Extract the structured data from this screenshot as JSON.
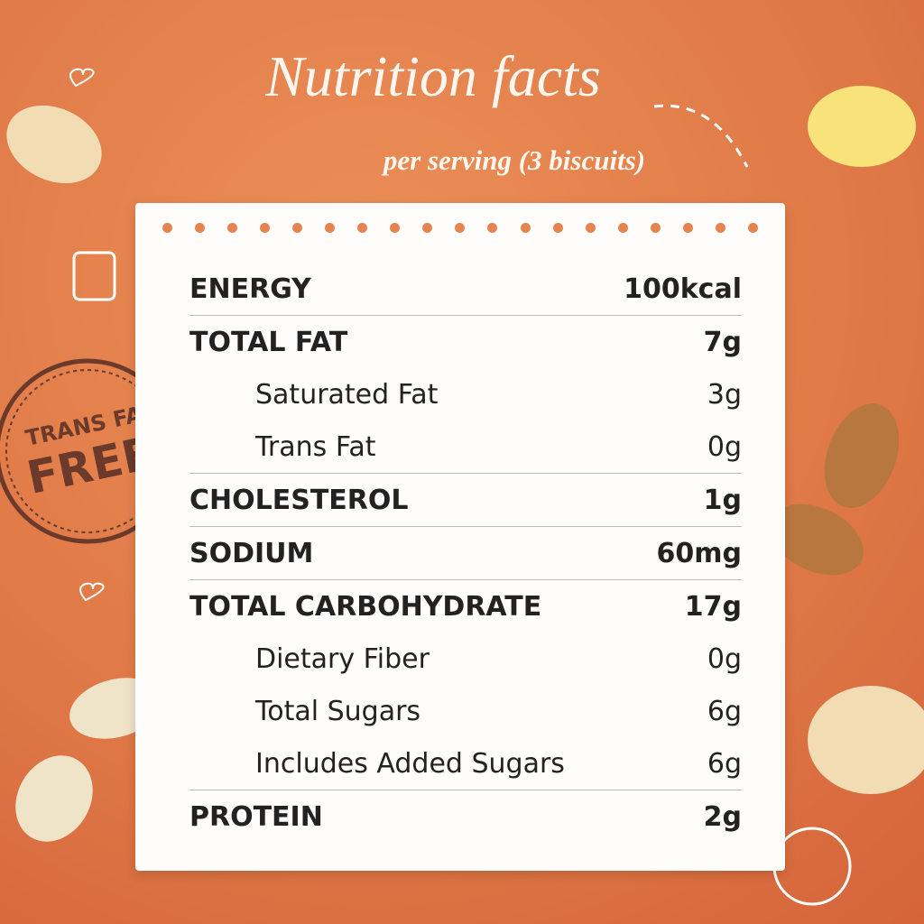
{
  "header": {
    "title": "Nutrition facts",
    "subtitle": "per serving (3 biscuits)"
  },
  "badge": {
    "line1": "TRANS FAT",
    "line2": "FREE"
  },
  "nutrients": [
    {
      "label": "ENERGY",
      "amount": "100kcal"
    },
    {
      "label": "TOTAL FAT",
      "amount": "7g",
      "sub_items": [
        {
          "label": "Saturated Fat",
          "amount": "3g"
        },
        {
          "label": "Trans Fat",
          "amount": "0g"
        }
      ]
    },
    {
      "label": "CHOLESTEROL",
      "amount": "1g"
    },
    {
      "label": "SODIUM",
      "amount": "60mg"
    },
    {
      "label": "TOTAL CARBOHYDRATE",
      "amount": "17g",
      "sub_items": [
        {
          "label": "Dietary Fiber",
          "amount": "0g"
        },
        {
          "label": "Total Sugars",
          "amount": "6g"
        },
        {
          "label": "Includes Added Sugars",
          "amount": "6g"
        }
      ]
    },
    {
      "label": "PROTEIN",
      "amount": "2g"
    }
  ]
}
